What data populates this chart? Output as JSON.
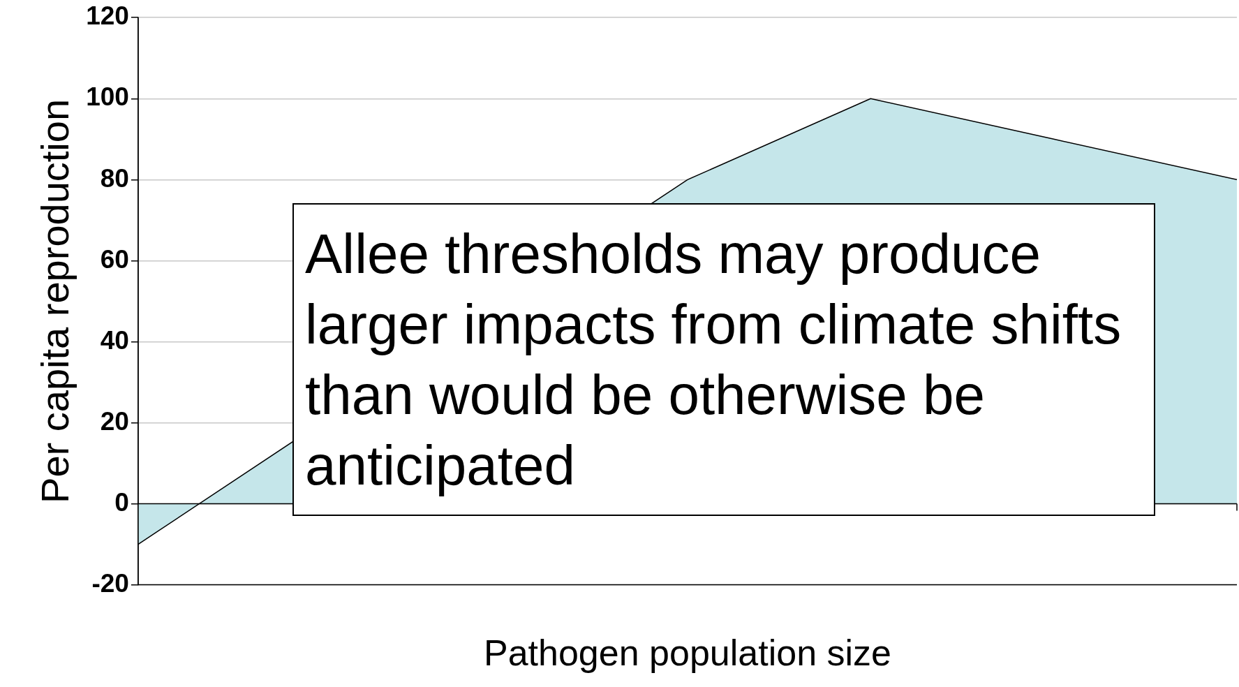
{
  "chart_data": {
    "type": "area",
    "xlabel": "Pathogen population size",
    "ylabel": "Per capita reproduction",
    "categories": [
      null,
      null,
      null,
      null,
      null,
      null,
      null
    ],
    "series": [
      {
        "color": "#c5e6ea",
        "values": [
          -10,
          null,
          null,
          80,
          100,
          90,
          80
        ]
      }
    ],
    "ylim": [
      -20,
      120
    ],
    "yticks": [
      -20,
      0,
      20,
      40,
      60,
      80,
      100,
      120
    ],
    "grid": "y",
    "tick_labels": "y",
    "annotations": [
      "Allee thresholds may produce larger impacts from climate shifts than would be otherwise be anticipated"
    ]
  }
}
